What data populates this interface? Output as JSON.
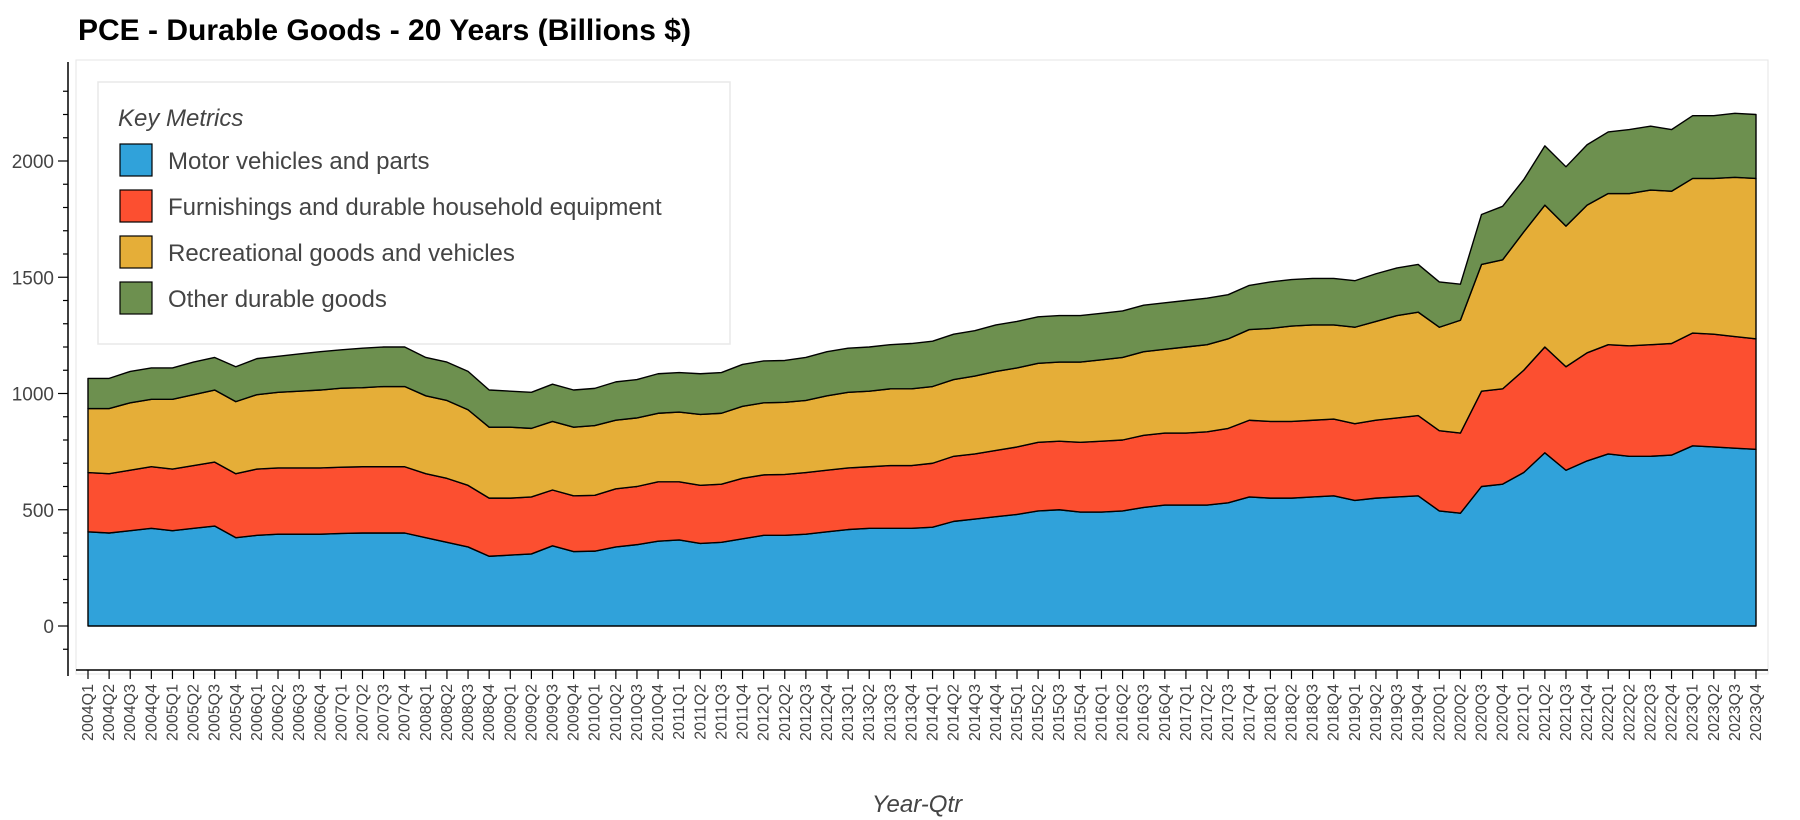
{
  "chart_data": {
    "type": "area",
    "stacked": true,
    "title": "PCE - Durable Goods - 20 Years (Billions $)",
    "xlabel": "Year-Qtr",
    "ylabel": "",
    "ylim": [
      -200,
      2400
    ],
    "yticks": [
      0,
      500,
      1000,
      1500,
      2000
    ],
    "legend_title": "Key Metrics",
    "legend_position": "top-left",
    "grid": false,
    "categories": [
      "2004Q1",
      "2004Q2",
      "2004Q3",
      "2004Q4",
      "2005Q1",
      "2005Q2",
      "2005Q3",
      "2005Q4",
      "2006Q1",
      "2006Q2",
      "2006Q3",
      "2006Q4",
      "2007Q1",
      "2007Q2",
      "2007Q3",
      "2007Q4",
      "2008Q1",
      "2008Q2",
      "2008Q3",
      "2008Q4",
      "2009Q1",
      "2009Q2",
      "2009Q3",
      "2009Q4",
      "2010Q1",
      "2010Q2",
      "2010Q3",
      "2010Q4",
      "2011Q1",
      "2011Q2",
      "2011Q3",
      "2011Q4",
      "2012Q1",
      "2012Q2",
      "2012Q3",
      "2012Q4",
      "2013Q1",
      "2013Q2",
      "2013Q3",
      "2013Q4",
      "2014Q1",
      "2014Q2",
      "2014Q3",
      "2014Q4",
      "2015Q1",
      "2015Q2",
      "2015Q3",
      "2015Q4",
      "2016Q1",
      "2016Q2",
      "2016Q3",
      "2016Q4",
      "2017Q1",
      "2017Q2",
      "2017Q3",
      "2017Q4",
      "2018Q1",
      "2018Q2",
      "2018Q3",
      "2018Q4",
      "2019Q1",
      "2019Q2",
      "2019Q3",
      "2019Q4",
      "2020Q1",
      "2020Q2",
      "2020Q3",
      "2020Q4",
      "2021Q1",
      "2021Q2",
      "2021Q3",
      "2021Q4",
      "2022Q1",
      "2022Q2",
      "2022Q3",
      "2022Q4",
      "2023Q1",
      "2023Q2",
      "2023Q3",
      "2023Q4"
    ],
    "series": [
      {
        "name": "Motor vehicles and parts",
        "color": "#30a2da",
        "values": [
          405,
          400,
          410,
          420,
          410,
          420,
          430,
          380,
          390,
          395,
          395,
          395,
          398,
          400,
          400,
          400,
          380,
          360,
          340,
          300,
          305,
          310,
          345,
          320,
          322,
          340,
          350,
          365,
          370,
          355,
          360,
          375,
          390,
          390,
          395,
          405,
          415,
          420,
          420,
          420,
          425,
          450,
          460,
          470,
          480,
          495,
          500,
          490,
          490,
          495,
          510,
          520,
          520,
          520,
          530,
          555,
          550,
          550,
          555,
          560,
          540,
          550,
          555,
          560,
          495,
          485,
          600,
          610,
          660,
          745,
          670,
          710,
          740,
          730,
          730,
          735,
          775,
          770,
          765,
          760
        ]
      },
      {
        "name": "Furnishings and durable household equipment",
        "color": "#fc4f30",
        "values": [
          255,
          255,
          260,
          265,
          265,
          270,
          275,
          275,
          285,
          285,
          285,
          285,
          285,
          285,
          285,
          285,
          275,
          275,
          265,
          250,
          245,
          245,
          240,
          240,
          240,
          250,
          250,
          255,
          250,
          250,
          250,
          260,
          260,
          262,
          265,
          265,
          265,
          265,
          270,
          270,
          275,
          280,
          280,
          285,
          290,
          295,
          295,
          300,
          305,
          305,
          310,
          310,
          310,
          315,
          320,
          330,
          330,
          330,
          330,
          330,
          330,
          335,
          340,
          345,
          345,
          345,
          410,
          410,
          440,
          455,
          445,
          465,
          470,
          475,
          480,
          480,
          485,
          485,
          480,
          475
        ]
      },
      {
        "name": "Recreational goods and vehicles",
        "color": "#e5ae38",
        "values": [
          275,
          280,
          290,
          290,
          300,
          305,
          310,
          310,
          320,
          325,
          330,
          335,
          340,
          340,
          345,
          345,
          335,
          335,
          325,
          305,
          305,
          295,
          295,
          295,
          300,
          295,
          295,
          295,
          300,
          305,
          305,
          310,
          310,
          310,
          310,
          320,
          325,
          325,
          330,
          330,
          330,
          330,
          335,
          340,
          340,
          340,
          340,
          345,
          350,
          355,
          360,
          360,
          370,
          375,
          385,
          390,
          400,
          410,
          410,
          405,
          415,
          425,
          440,
          445,
          445,
          485,
          545,
          555,
          595,
          610,
          605,
          635,
          650,
          655,
          665,
          655,
          665,
          670,
          685,
          690
        ]
      },
      {
        "name": "Other durable goods",
        "color": "#6d904f",
        "values": [
          130,
          130,
          135,
          135,
          135,
          140,
          140,
          150,
          155,
          155,
          160,
          165,
          165,
          170,
          170,
          170,
          165,
          165,
          165,
          160,
          155,
          155,
          160,
          160,
          160,
          165,
          165,
          170,
          170,
          175,
          175,
          180,
          180,
          180,
          185,
          190,
          190,
          190,
          190,
          195,
          195,
          195,
          195,
          200,
          200,
          200,
          200,
          200,
          200,
          200,
          200,
          200,
          200,
          200,
          190,
          190,
          200,
          200,
          200,
          200,
          200,
          205,
          205,
          205,
          195,
          155,
          215,
          230,
          225,
          255,
          255,
          260,
          265,
          275,
          275,
          265,
          270,
          270,
          275,
          275
        ]
      }
    ]
  }
}
